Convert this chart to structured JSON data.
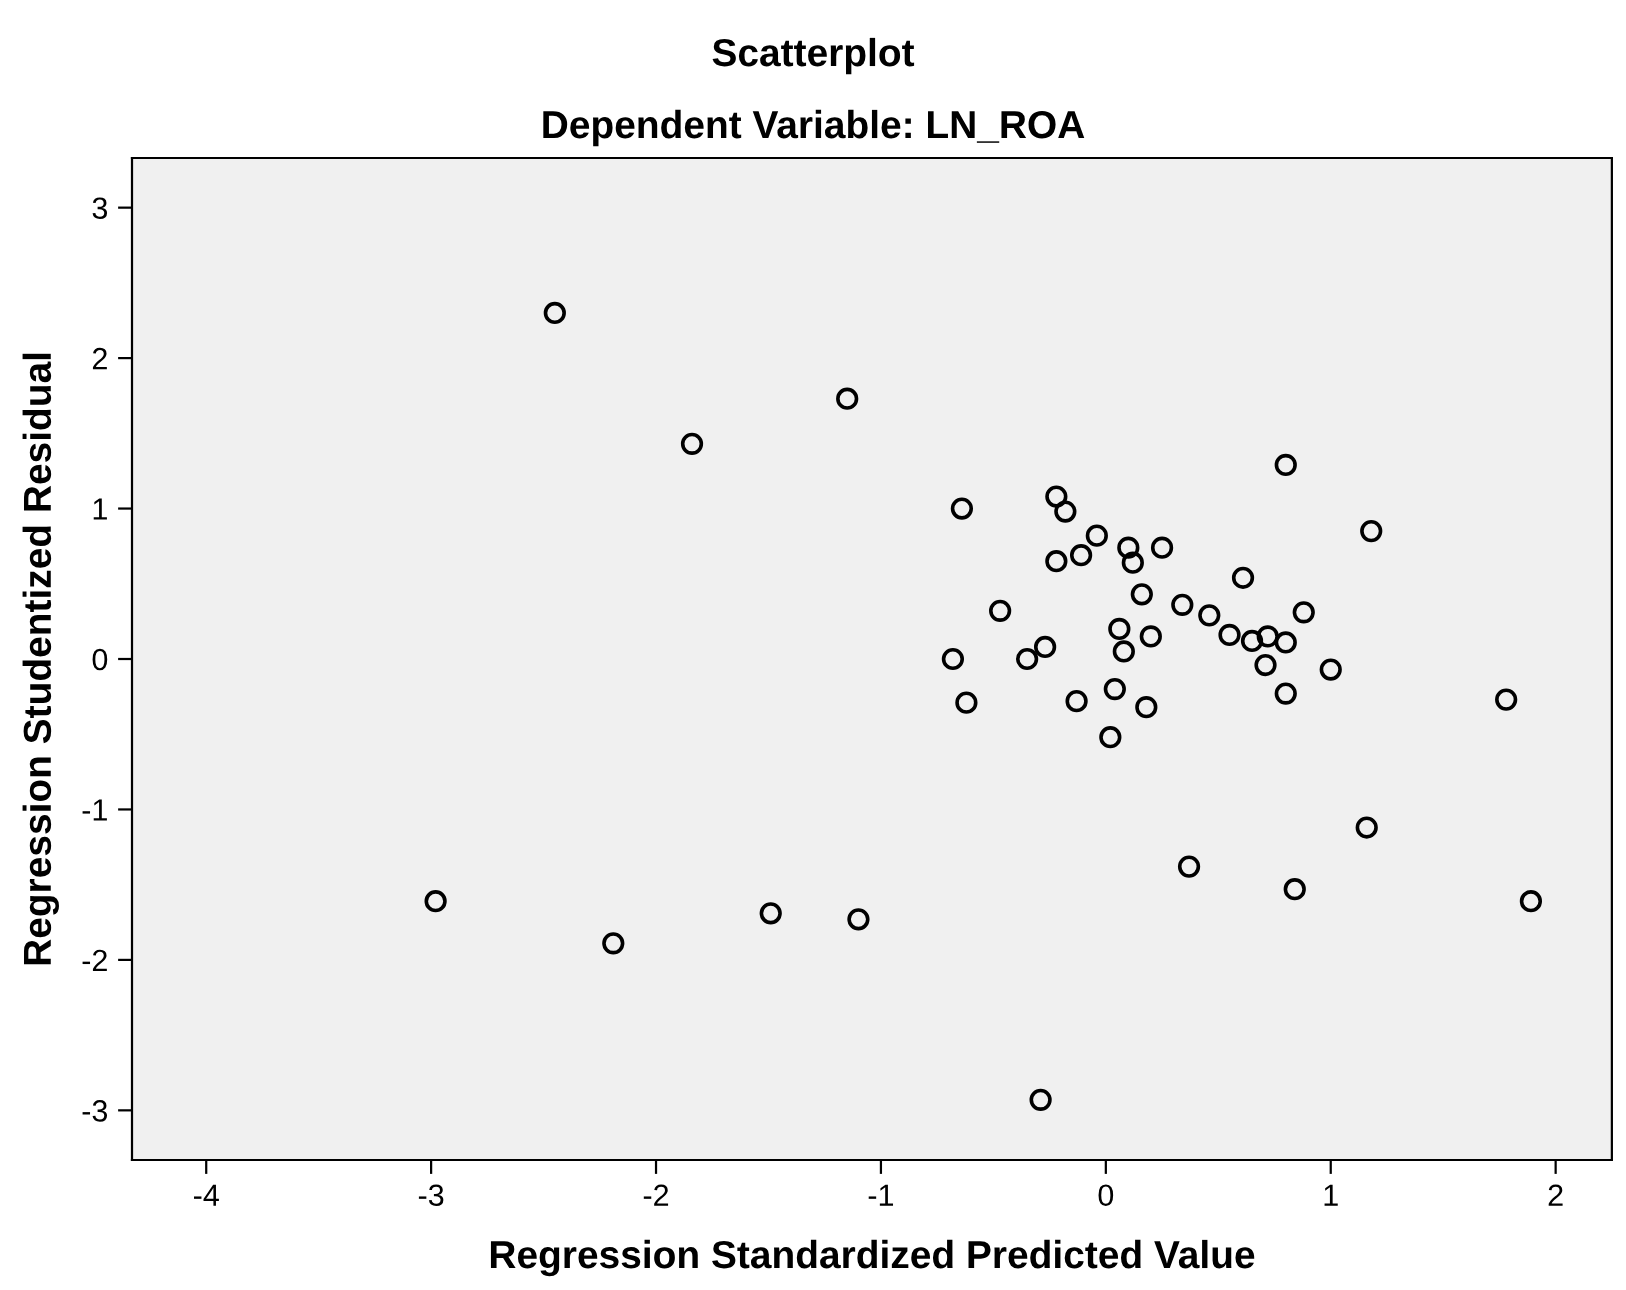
{
  "chart_data": {
    "type": "scatter",
    "title": "Scatterplot",
    "subtitle": "Dependent Variable: LN_ROA",
    "xlabel": "Regression Standardized Predicted Value",
    "ylabel": "Regression Studentized Residual",
    "xlim": [
      -4.33,
      2.25
    ],
    "ylim": [
      -3.33,
      3.33
    ],
    "xticks": [
      -4,
      -3,
      -2,
      -1,
      0,
      1,
      2
    ],
    "yticks": [
      -3,
      -2,
      -1,
      0,
      1,
      2,
      3
    ],
    "grid": false,
    "legend": false,
    "marker": "circle",
    "series": [
      {
        "color": "#000000",
        "x": [
          -2.45,
          -1.84,
          -1.15,
          -2.98,
          -2.19,
          -1.49,
          -1.1,
          -0.29,
          0.37,
          0.84,
          1.16,
          1.89,
          0.8,
          1.18,
          -0.64,
          -0.22,
          -0.18,
          -0.04,
          -0.11,
          -0.22,
          0.1,
          0.12,
          0.25,
          0.61,
          0.16,
          0.34,
          0.46,
          0.88,
          -0.47,
          0.06,
          0.2,
          0.08,
          0.55,
          0.65,
          0.72,
          0.8,
          0.71,
          1.0,
          -0.27,
          -0.35,
          -0.68,
          -0.62,
          -0.13,
          0.04,
          0.18,
          0.02,
          0.8,
          1.78
        ],
        "values": [
          2.3,
          1.43,
          1.73,
          -1.61,
          -1.89,
          -1.69,
          -1.73,
          -2.93,
          -1.38,
          -1.53,
          -1.12,
          -1.61,
          1.29,
          0.85,
          1.0,
          1.08,
          0.98,
          0.82,
          0.69,
          0.65,
          0.74,
          0.64,
          0.74,
          0.54,
          0.43,
          0.36,
          0.29,
          0.31,
          0.32,
          0.2,
          0.15,
          0.05,
          0.16,
          0.12,
          0.15,
          0.11,
          -0.04,
          -0.07,
          0.08,
          0.0,
          0.0,
          -0.29,
          -0.28,
          -0.2,
          -0.32,
          -0.52,
          -0.23,
          -0.27
        ]
      }
    ]
  }
}
